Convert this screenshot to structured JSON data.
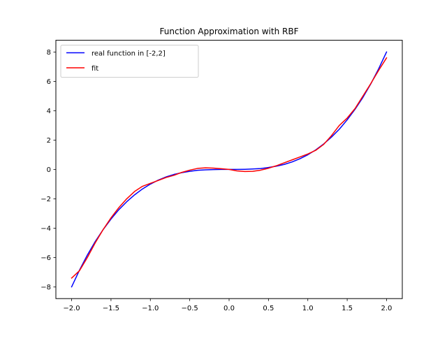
{
  "chart_data": {
    "type": "line",
    "title": "Function Approximation with RBF",
    "xlabel": "",
    "ylabel": "",
    "xlim": [
      -2.2,
      2.2
    ],
    "ylim": [
      -8.8,
      8.8
    ],
    "x_ticks": [
      -2.0,
      -1.5,
      -1.0,
      -0.5,
      0.0,
      0.5,
      1.0,
      1.5,
      2.0
    ],
    "x_tick_labels": [
      "−2.0",
      "−1.5",
      "−1.0",
      "−0.5",
      "0.0",
      "0.5",
      "1.0",
      "1.5",
      "2.0"
    ],
    "y_ticks": [
      -8,
      -6,
      -4,
      -2,
      0,
      2,
      4,
      6,
      8
    ],
    "y_tick_labels": [
      "−8",
      "−6",
      "−4",
      "−2",
      "0",
      "2",
      "4",
      "6",
      "8"
    ],
    "grid": false,
    "legend_position": "top-left",
    "series": [
      {
        "name": "real function in [-2,2]",
        "color": "#0000ff",
        "x": [
          -2.0,
          -1.9,
          -1.8,
          -1.7,
          -1.6,
          -1.5,
          -1.4,
          -1.3,
          -1.2,
          -1.1,
          -1.0,
          -0.9,
          -0.8,
          -0.7,
          -0.6,
          -0.5,
          -0.4,
          -0.3,
          -0.2,
          -0.1,
          0.0,
          0.1,
          0.2,
          0.3,
          0.4,
          0.5,
          0.6,
          0.7,
          0.8,
          0.9,
          1.0,
          1.1,
          1.2,
          1.3,
          1.4,
          1.5,
          1.6,
          1.7,
          1.8,
          1.9,
          2.0
        ],
        "y": [
          -8.0,
          -6.86,
          -5.83,
          -4.91,
          -4.1,
          -3.38,
          -2.74,
          -2.2,
          -1.73,
          -1.33,
          -1.0,
          -0.73,
          -0.51,
          -0.34,
          -0.22,
          -0.13,
          -0.06,
          -0.03,
          -0.01,
          0.0,
          0.0,
          0.0,
          0.01,
          0.03,
          0.06,
          0.13,
          0.22,
          0.34,
          0.51,
          0.73,
          1.0,
          1.33,
          1.73,
          2.2,
          2.74,
          3.38,
          4.1,
          4.91,
          5.83,
          6.86,
          8.0
        ]
      },
      {
        "name": "fit",
        "color": "#ff0000",
        "x": [
          -2.0,
          -1.9,
          -1.8,
          -1.7,
          -1.6,
          -1.5,
          -1.4,
          -1.3,
          -1.2,
          -1.1,
          -1.0,
          -0.9,
          -0.8,
          -0.7,
          -0.6,
          -0.5,
          -0.4,
          -0.3,
          -0.2,
          -0.1,
          0.0,
          0.1,
          0.2,
          0.3,
          0.4,
          0.5,
          0.6,
          0.7,
          0.8,
          0.9,
          1.0,
          1.1,
          1.2,
          1.3,
          1.4,
          1.5,
          1.6,
          1.7,
          1.8,
          1.9,
          2.0
        ],
        "y": [
          -7.4,
          -6.9,
          -6.0,
          -5.0,
          -4.1,
          -3.3,
          -2.6,
          -2.0,
          -1.5,
          -1.15,
          -0.95,
          -0.75,
          -0.55,
          -0.4,
          -0.2,
          -0.05,
          0.07,
          0.11,
          0.09,
          0.05,
          0.0,
          -0.1,
          -0.14,
          -0.13,
          -0.05,
          0.08,
          0.25,
          0.45,
          0.65,
          0.85,
          1.05,
          1.3,
          1.7,
          2.3,
          3.0,
          3.5,
          4.15,
          5.0,
          5.85,
          6.75,
          7.6
        ]
      }
    ]
  }
}
